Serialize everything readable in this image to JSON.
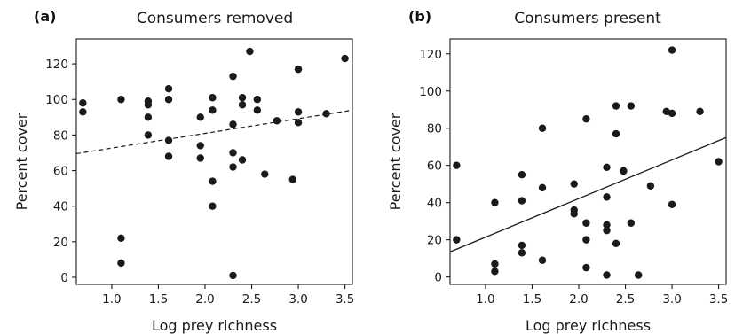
{
  "chart_data": [
    {
      "type": "scatter",
      "panel_label": "(a)",
      "title": "Consumers removed",
      "xlabel": "Log prey richness",
      "ylabel": "Percent cover",
      "xlim": [
        0.62,
        3.58
      ],
      "ylim": [
        -4,
        134
      ],
      "xticks": [
        1.0,
        1.5,
        2.0,
        2.5,
        3.0,
        3.5
      ],
      "xtick_labels": [
        "1.0",
        "1.5",
        "2.0",
        "2.5",
        "3.0",
        "3.5"
      ],
      "yticks": [
        0,
        20,
        40,
        60,
        80,
        100,
        120
      ],
      "ytick_labels": [
        "0",
        "20",
        "40",
        "60",
        "80",
        "100",
        "120"
      ],
      "grid": false,
      "fit_line": {
        "style": "dashed",
        "x": [
          0.62,
          3.58
        ],
        "y": [
          69.5,
          94.0
        ]
      },
      "points": [
        {
          "x": 0.69,
          "y": 98
        },
        {
          "x": 0.69,
          "y": 93
        },
        {
          "x": 1.1,
          "y": 100
        },
        {
          "x": 1.1,
          "y": 22
        },
        {
          "x": 1.1,
          "y": 8
        },
        {
          "x": 1.39,
          "y": 99
        },
        {
          "x": 1.39,
          "y": 97
        },
        {
          "x": 1.39,
          "y": 90
        },
        {
          "x": 1.39,
          "y": 80
        },
        {
          "x": 1.61,
          "y": 106
        },
        {
          "x": 1.61,
          "y": 100
        },
        {
          "x": 1.61,
          "y": 77
        },
        {
          "x": 1.61,
          "y": 68
        },
        {
          "x": 1.95,
          "y": 90
        },
        {
          "x": 1.95,
          "y": 74
        },
        {
          "x": 1.95,
          "y": 67
        },
        {
          "x": 2.08,
          "y": 101
        },
        {
          "x": 2.08,
          "y": 94
        },
        {
          "x": 2.08,
          "y": 54
        },
        {
          "x": 2.08,
          "y": 40
        },
        {
          "x": 2.3,
          "y": 113
        },
        {
          "x": 2.3,
          "y": 86
        },
        {
          "x": 2.3,
          "y": 70
        },
        {
          "x": 2.3,
          "y": 62
        },
        {
          "x": 2.3,
          "y": 1
        },
        {
          "x": 2.4,
          "y": 101
        },
        {
          "x": 2.4,
          "y": 97
        },
        {
          "x": 2.4,
          "y": 66
        },
        {
          "x": 2.48,
          "y": 127
        },
        {
          "x": 2.56,
          "y": 100
        },
        {
          "x": 2.56,
          "y": 94
        },
        {
          "x": 2.64,
          "y": 58
        },
        {
          "x": 2.77,
          "y": 88
        },
        {
          "x": 2.94,
          "y": 55
        },
        {
          "x": 3.0,
          "y": 117
        },
        {
          "x": 3.0,
          "y": 93
        },
        {
          "x": 3.0,
          "y": 87
        },
        {
          "x": 3.3,
          "y": 92
        },
        {
          "x": 3.5,
          "y": 123
        }
      ]
    },
    {
      "type": "scatter",
      "panel_label": "(b)",
      "title": "Consumers present",
      "xlabel": "Log prey richness",
      "ylabel": "Percent cover",
      "xlim": [
        0.62,
        3.58
      ],
      "ylim": [
        -4,
        128
      ],
      "xticks": [
        1.0,
        1.5,
        2.0,
        2.5,
        3.0,
        3.5
      ],
      "xtick_labels": [
        "1.0",
        "1.5",
        "2.0",
        "2.5",
        "3.0",
        "3.5"
      ],
      "yticks": [
        0,
        20,
        40,
        60,
        80,
        100,
        120
      ],
      "ytick_labels": [
        "0",
        "20",
        "40",
        "60",
        "80",
        "100",
        "120"
      ],
      "grid": false,
      "fit_line": {
        "style": "solid",
        "x": [
          0.62,
          3.58
        ],
        "y": [
          13.5,
          75.0
        ]
      },
      "points": [
        {
          "x": 0.69,
          "y": 60
        },
        {
          "x": 0.69,
          "y": 20
        },
        {
          "x": 1.1,
          "y": 40
        },
        {
          "x": 1.1,
          "y": 7
        },
        {
          "x": 1.1,
          "y": 3
        },
        {
          "x": 1.39,
          "y": 55
        },
        {
          "x": 1.39,
          "y": 41
        },
        {
          "x": 1.39,
          "y": 17
        },
        {
          "x": 1.39,
          "y": 13
        },
        {
          "x": 1.61,
          "y": 80
        },
        {
          "x": 1.61,
          "y": 48
        },
        {
          "x": 1.61,
          "y": 9
        },
        {
          "x": 1.95,
          "y": 50
        },
        {
          "x": 1.95,
          "y": 36
        },
        {
          "x": 1.95,
          "y": 34
        },
        {
          "x": 2.08,
          "y": 85
        },
        {
          "x": 2.08,
          "y": 29
        },
        {
          "x": 2.08,
          "y": 20
        },
        {
          "x": 2.08,
          "y": 5
        },
        {
          "x": 2.3,
          "y": 59
        },
        {
          "x": 2.3,
          "y": 43
        },
        {
          "x": 2.3,
          "y": 28
        },
        {
          "x": 2.3,
          "y": 25
        },
        {
          "x": 2.3,
          "y": 1
        },
        {
          "x": 2.4,
          "y": 92
        },
        {
          "x": 2.4,
          "y": 77
        },
        {
          "x": 2.4,
          "y": 18
        },
        {
          "x": 2.48,
          "y": 57
        },
        {
          "x": 2.56,
          "y": 92
        },
        {
          "x": 2.56,
          "y": 29
        },
        {
          "x": 2.64,
          "y": 1
        },
        {
          "x": 2.77,
          "y": 49
        },
        {
          "x": 2.94,
          "y": 89
        },
        {
          "x": 3.0,
          "y": 122
        },
        {
          "x": 3.0,
          "y": 88
        },
        {
          "x": 3.0,
          "y": 39
        },
        {
          "x": 3.3,
          "y": 89
        },
        {
          "x": 3.5,
          "y": 62
        }
      ]
    }
  ]
}
